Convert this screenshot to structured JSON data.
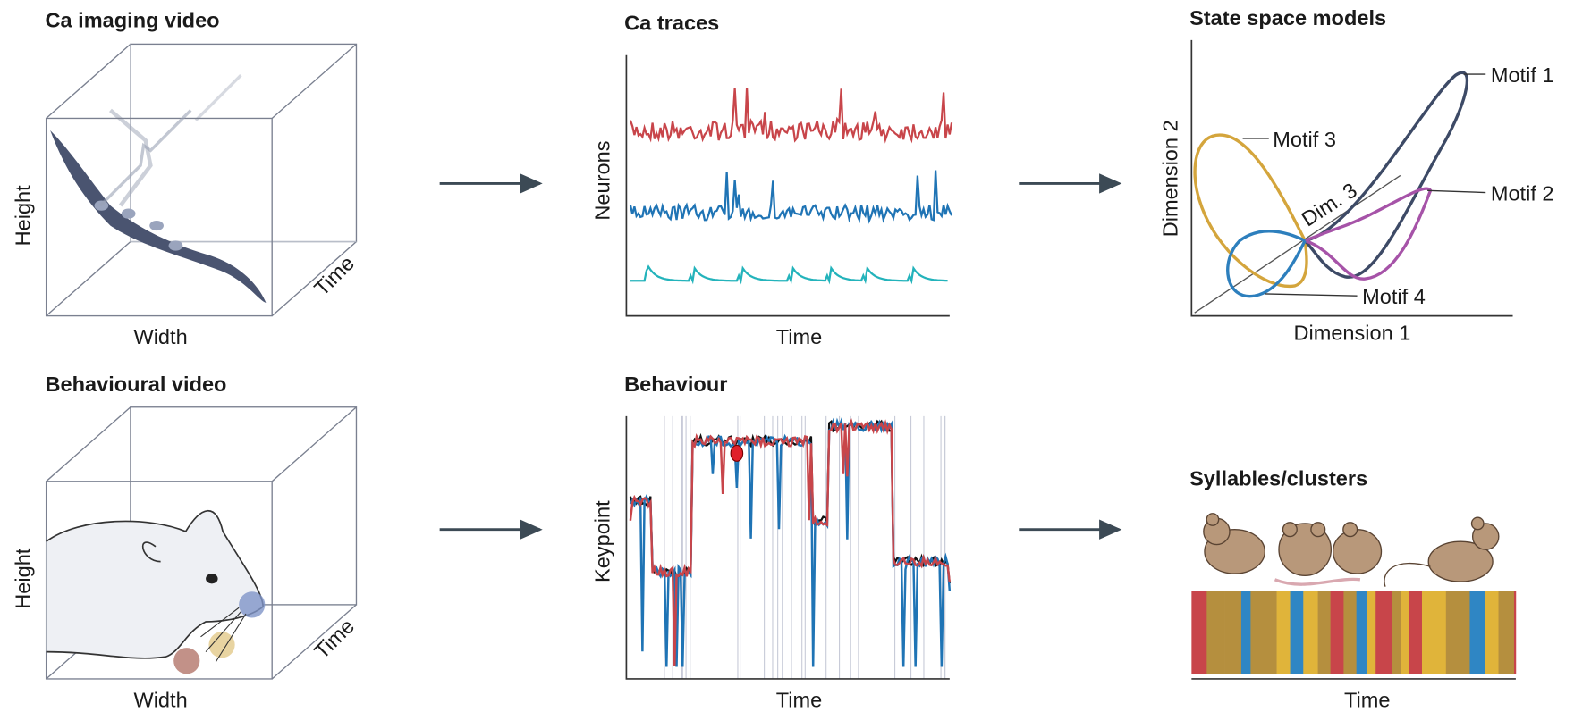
{
  "panels": {
    "ca_video": {
      "title": "Ca imaging video",
      "y_label": "Height",
      "x_label": "Width",
      "z_label": "Time"
    },
    "ca_traces": {
      "title": "Ca traces",
      "y_label": "Neurons",
      "x_label": "Time"
    },
    "state_space": {
      "title": "State space models",
      "y_label": "Dimension 2",
      "x_label": "Dimension 1",
      "z_label": "Dim. 3",
      "motifs": [
        "Motif 1",
        "Motif 2",
        "Motif 3",
        "Motif 4"
      ]
    },
    "behaviour_video": {
      "title": "Behavioural video",
      "y_label": "Height",
      "x_label": "Width",
      "z_label": "Time"
    },
    "behaviour": {
      "title": "Behaviour",
      "y_label": "Keypoint",
      "x_label": "Time"
    },
    "syllables": {
      "title": "Syllables/clusters",
      "x_label": "Time"
    }
  }
}
